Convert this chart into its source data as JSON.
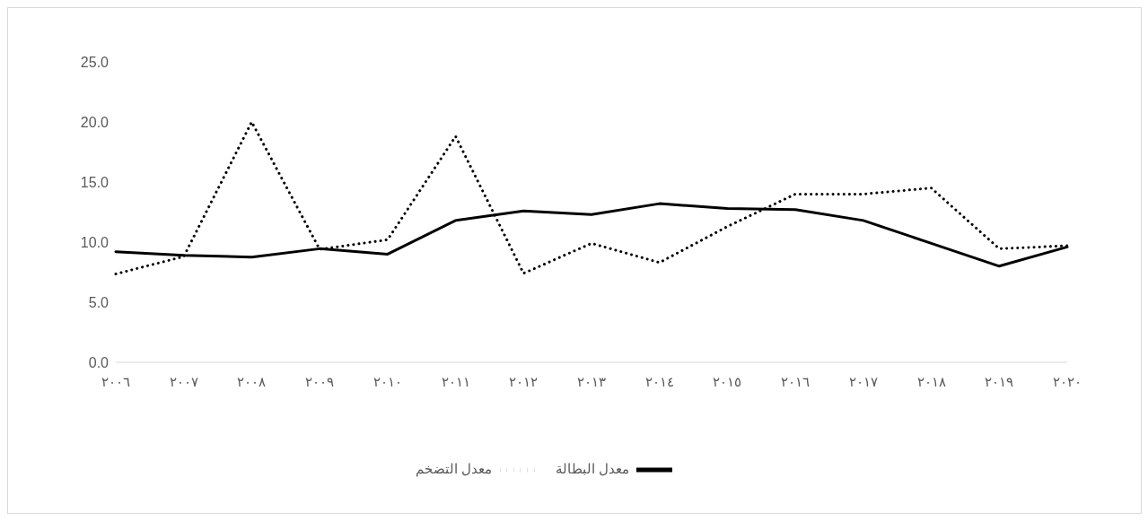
{
  "chart_data": {
    "type": "line",
    "categories": [
      "٢٠٠٦",
      "٢٠٠٧",
      "٢٠٠٨",
      "٢٠٠٩",
      "٢٠١٠",
      "٢٠١١",
      "٢٠١٢",
      "٢٠١٣",
      "٢٠١٤",
      "٢٠١٥",
      "٢٠١٦",
      "٢٠١٧",
      "٢٠١٨",
      "٢٠١٩",
      "٢٠٢٠"
    ],
    "series": [
      {
        "name": "معدل البطالة",
        "color": "#000000",
        "line_style": "solid",
        "values": [
          9.2,
          8.9,
          8.75,
          9.45,
          9.0,
          11.8,
          12.6,
          12.3,
          13.2,
          12.8,
          12.7,
          11.8,
          9.9,
          8.0,
          9.6
        ]
      },
      {
        "name": "معدل التضخم",
        "color": "#000000",
        "line_style": "dotted",
        "values": [
          7.35,
          8.8,
          20.0,
          9.4,
          10.2,
          18.8,
          7.4,
          9.9,
          8.3,
          11.3,
          14.0,
          14.0,
          14.5,
          9.45,
          9.7
        ]
      }
    ],
    "ylim": [
      0,
      25
    ],
    "yticks": [
      {
        "value": 0,
        "label": "0.0"
      },
      {
        "value": 5,
        "label": "5.0"
      },
      {
        "value": 10,
        "label": "10.0"
      },
      {
        "value": 15,
        "label": "15.0"
      },
      {
        "value": 20,
        "label": "20.0"
      },
      {
        "value": 25,
        "label": "25.0"
      }
    ],
    "grid": false,
    "legend": "bottom",
    "marker": "none"
  }
}
